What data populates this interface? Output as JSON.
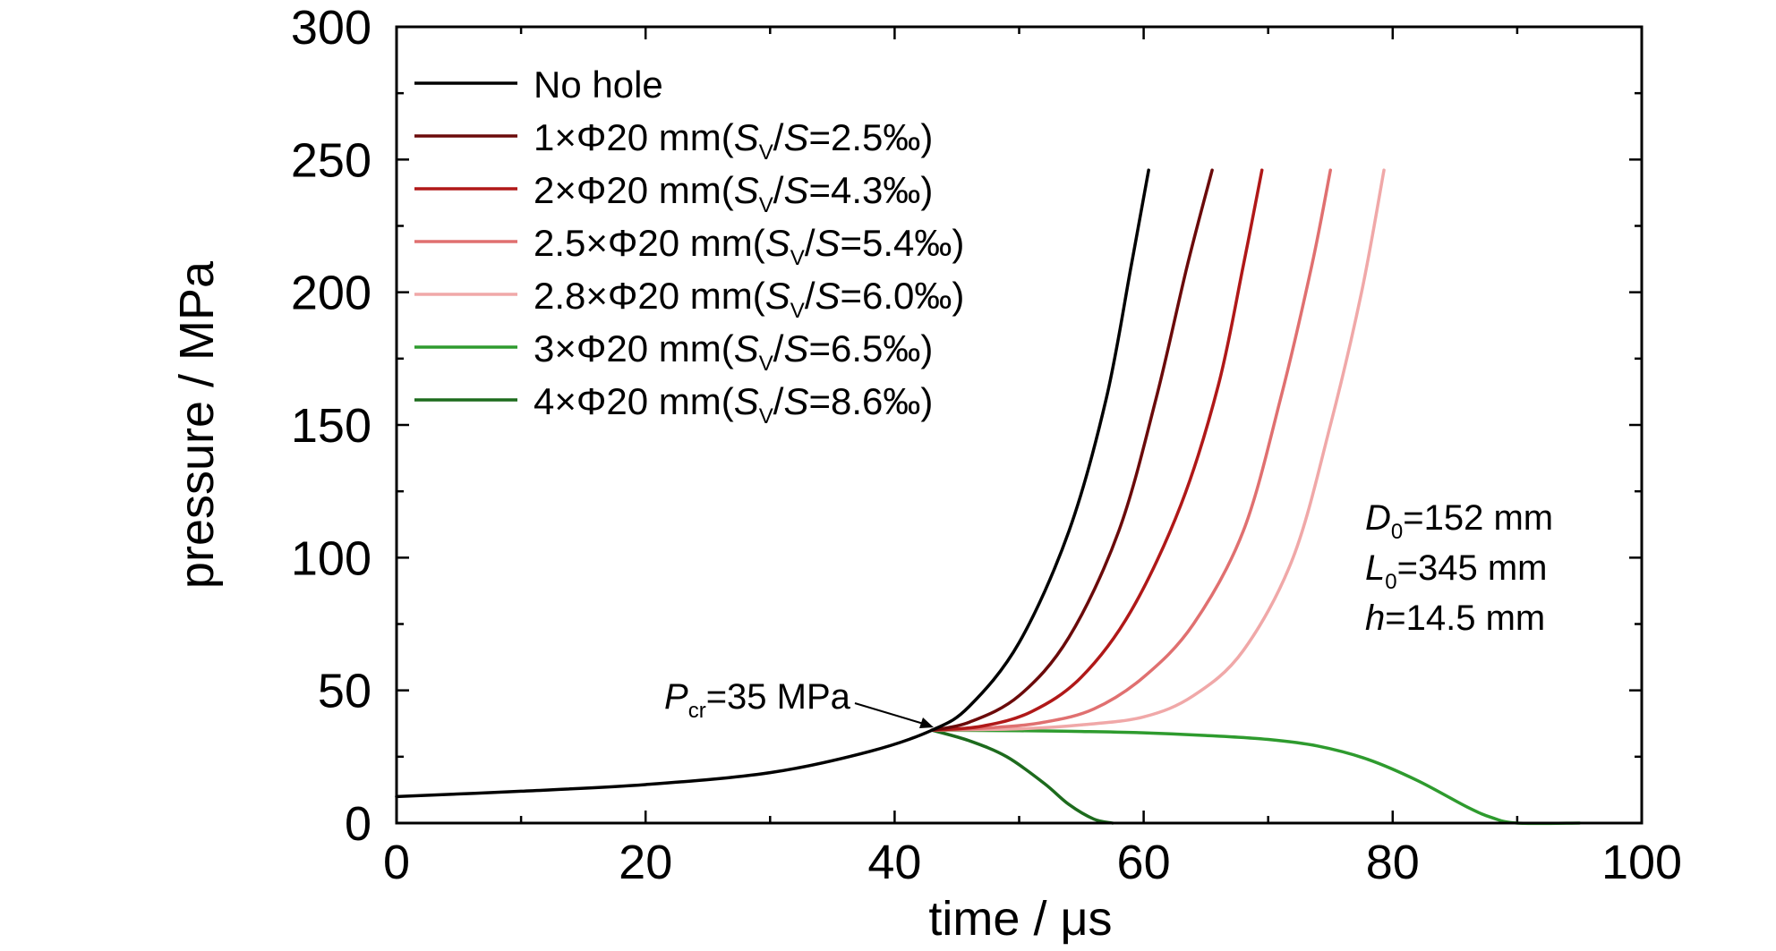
{
  "chart_data": {
    "type": "line",
    "xlabel": "time / μs",
    "ylabel": "pressure / MPa",
    "xlim": [
      0,
      100
    ],
    "ylim": [
      0,
      300
    ],
    "xticks": [
      0,
      20,
      40,
      60,
      80,
      100
    ],
    "yticks": [
      0,
      50,
      100,
      150,
      200,
      250,
      300
    ],
    "grid": false,
    "legend_position": "top-left",
    "series": [
      {
        "name": "No hole",
        "legend_main": "No hole",
        "legend_ratio": "",
        "color": "#000000",
        "x": [
          0,
          10,
          20,
          30,
          38,
          43,
          46,
          50,
          54,
          57,
          59,
          60.4
        ],
        "y": [
          10,
          12,
          14.5,
          19,
          27,
          35,
          44,
          68,
          110,
          160,
          210,
          246
        ]
      },
      {
        "name": "1×Φ20 mm(SV/S=2.5‰)",
        "legend_main": "1×Φ20 mm(",
        "legend_ratio": "=2.5‰)",
        "color": "#6b0a0a",
        "x": [
          43,
          46,
          50,
          54,
          58,
          61,
          63.5,
          65.5
        ],
        "y": [
          35,
          38,
          48,
          70,
          110,
          160,
          210,
          246
        ]
      },
      {
        "name": "2×Φ20 mm(SV/S=4.3‰)",
        "legend_main": "2×Φ20 mm(",
        "legend_ratio": "=4.3‰)",
        "color": "#b01818",
        "x": [
          43,
          47,
          51,
          55,
          59,
          63,
          66,
          68,
          69.5
        ],
        "y": [
          35,
          36.5,
          42,
          55,
          80,
          120,
          165,
          210,
          246
        ]
      },
      {
        "name": "2.5×Φ20 mm(SV/S=5.4‰)",
        "legend_main": "2.5×Φ20 mm(",
        "legend_ratio": "=5.4‰)",
        "color": "#e07070",
        "x": [
          43,
          48,
          52,
          56,
          60,
          64,
          68,
          71,
          73.5,
          75
        ],
        "y": [
          35,
          36,
          38,
          43,
          55,
          75,
          110,
          160,
          210,
          246
        ]
      },
      {
        "name": "2.8×Φ20 mm(SV/S=6.0‰)",
        "legend_main": "2.8×Φ20 mm(",
        "legend_ratio": "=6.0‰)",
        "color": "#f0a8a8",
        "x": [
          43,
          50,
          55,
          60,
          64,
          68,
          72,
          75,
          77.5,
          79.3
        ],
        "y": [
          35,
          35.5,
          37,
          40,
          48,
          65,
          100,
          150,
          200,
          246
        ]
      },
      {
        "name": "3×Φ20 mm(SV/S=6.5‰)",
        "legend_main": "3×Φ20 mm(",
        "legend_ratio": "=6.5‰)",
        "color": "#2e9b2e",
        "x": [
          43,
          50,
          55,
          60,
          65,
          70,
          74,
          78,
          82,
          86,
          88,
          90,
          95
        ],
        "y": [
          35,
          34.8,
          34.5,
          34,
          33,
          31.5,
          29,
          24,
          16,
          6,
          2,
          0,
          0
        ]
      },
      {
        "name": "4×Φ20 mm(SV/S=8.6‰)",
        "legend_main": "4×Φ20 mm(",
        "legend_ratio": "=8.6‰)",
        "color": "#1d6b1d",
        "x": [
          43,
          46,
          49,
          52,
          54,
          56,
          57.5
        ],
        "y": [
          35,
          31,
          25,
          15,
          7,
          1.5,
          0
        ]
      }
    ],
    "annotations": {
      "pcr_sym": "P",
      "pcr_sub": "cr",
      "pcr_value": "=35 MPa",
      "d0_sym": "D",
      "d0_sub": "0",
      "d0_value": "=152 mm",
      "l0_sym": "L",
      "l0_sub": "0",
      "l0_value": "=345 mm",
      "h_sym": "h",
      "h_value": "=14.5 mm",
      "ratio_sym_s": "S",
      "ratio_sub_v": "V",
      "ratio_slash": "/",
      "ratio_sym_s2": "S"
    }
  }
}
